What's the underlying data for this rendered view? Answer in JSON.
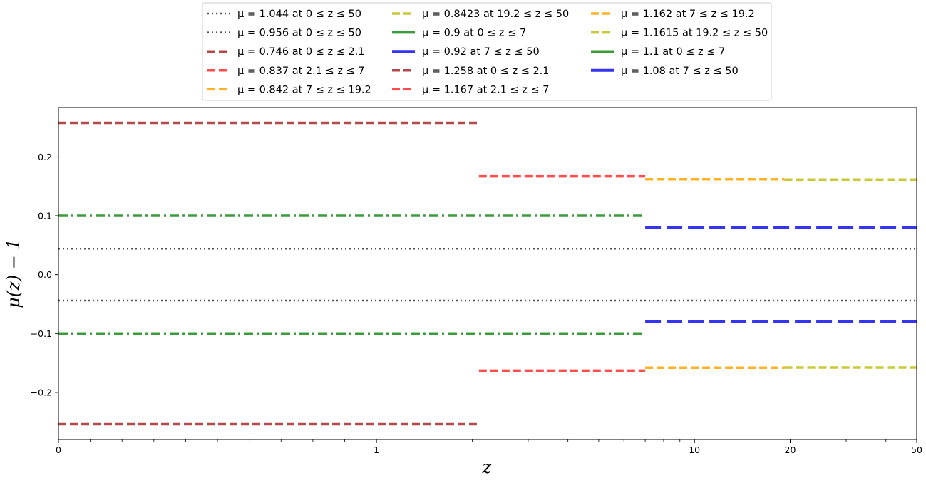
{
  "chart_data": {
    "type": "line",
    "title": "",
    "xlabel": "z",
    "ylabel": "μ(z) − 1",
    "xscale": "symlog",
    "xlim": [
      0,
      50
    ],
    "ylim": [
      -0.28,
      0.284
    ],
    "x_ticks": [
      {
        "value": 0,
        "label": "0"
      },
      {
        "value": 1,
        "label": "1"
      },
      {
        "value": 10,
        "label": "10"
      },
      {
        "value": 20,
        "label": "20"
      },
      {
        "value": 50,
        "label": "50"
      }
    ],
    "y_ticks": [
      {
        "value": 0.2,
        "label": "0.2"
      },
      {
        "value": 0.1,
        "label": "0.1"
      },
      {
        "value": 0.0,
        "label": "0.0"
      },
      {
        "value": -0.1,
        "label": "−0.1"
      },
      {
        "value": -0.2,
        "label": "−0.2"
      }
    ],
    "grid": false,
    "legend_placement": "top-center, above plot, 3 columns",
    "series": [
      {
        "name": "μ = 1.044 at 0 ≤ z ≤ 50",
        "color": "#333333",
        "style": "dotted",
        "x": [
          0,
          50
        ],
        "y": [
          0.044,
          0.044
        ]
      },
      {
        "name": "μ = 0.956 at 0 ≤ z ≤ 50",
        "color": "#333333",
        "style": "dotted",
        "x": [
          0,
          50
        ],
        "y": [
          -0.044,
          -0.044
        ]
      },
      {
        "name": "μ = 0.746 at 0 ≤ z ≤ 2.1",
        "color": "#a52a2a",
        "style": "dashed",
        "x": [
          0,
          2.1
        ],
        "y": [
          -0.254,
          -0.254
        ]
      },
      {
        "name": "μ = 0.837 at 2.1 ≤ z ≤ 7",
        "color": "#ff2d2d",
        "style": "dashed",
        "x": [
          2.1,
          7
        ],
        "y": [
          -0.163,
          -0.163
        ]
      },
      {
        "name": "μ = 0.842 at 7 ≤ z ≤ 19.2",
        "color": "#ffa500",
        "style": "dashed",
        "x": [
          7,
          19.2
        ],
        "y": [
          -0.158,
          -0.158
        ]
      },
      {
        "name": "μ = 0.8423 at 19.2 ≤ z ≤ 50",
        "color": "#bfbf18",
        "style": "dashed",
        "x": [
          19.2,
          50
        ],
        "y": [
          -0.1577,
          -0.1577
        ]
      },
      {
        "name": "μ = 0.9 at 0 ≤ z ≤ 7",
        "color": "#1a8a1a",
        "style": "dashdot",
        "x": [
          0,
          7
        ],
        "y": [
          -0.1,
          -0.1
        ]
      },
      {
        "name": "μ = 0.92 at 7 ≤ z ≤ 50",
        "color": "#1010ee",
        "style": "longdash",
        "x": [
          7,
          50
        ],
        "y": [
          -0.08,
          -0.08
        ]
      },
      {
        "name": "μ = 1.258 at 0 ≤ z ≤ 2.1",
        "color": "#a52a2a",
        "style": "dashed",
        "x": [
          0,
          2.1
        ],
        "y": [
          0.258,
          0.258
        ]
      },
      {
        "name": "μ = 1.167 at 2.1 ≤ z ≤ 7",
        "color": "#ff2d2d",
        "style": "dashed",
        "x": [
          2.1,
          7
        ],
        "y": [
          0.167,
          0.167
        ]
      },
      {
        "name": "μ = 1.162 at 7 ≤ z ≤ 19.2",
        "color": "#ffa500",
        "style": "dashed",
        "x": [
          7,
          19.2
        ],
        "y": [
          0.162,
          0.162
        ]
      },
      {
        "name": "μ = 1.1615 at 19.2 ≤ z ≤ 50",
        "color": "#bfbf18",
        "style": "dashed",
        "x": [
          19.2,
          50
        ],
        "y": [
          0.1615,
          0.1615
        ]
      },
      {
        "name": "μ = 1.1 at 0 ≤ z ≤ 7",
        "color": "#1a8a1a",
        "style": "dashdot",
        "x": [
          0,
          7
        ],
        "y": [
          0.1,
          0.1
        ]
      },
      {
        "name": "μ = 1.08 at 7 ≤ z ≤ 50",
        "color": "#1010ee",
        "style": "longdash",
        "x": [
          7,
          50
        ],
        "y": [
          0.08,
          0.08
        ]
      }
    ]
  }
}
